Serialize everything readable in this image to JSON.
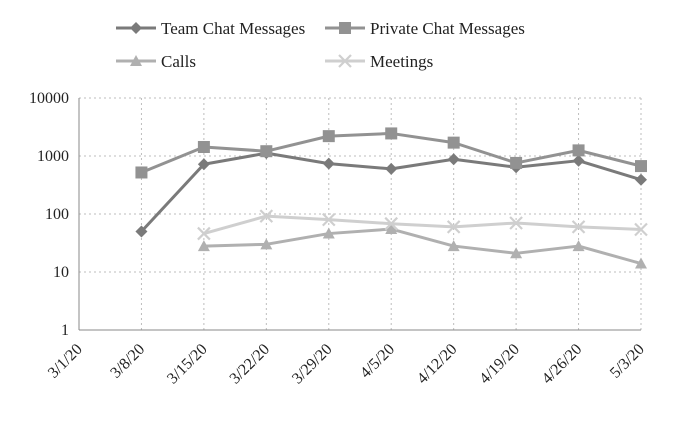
{
  "chart_data": {
    "type": "line",
    "title": "",
    "xlabel": "",
    "ylabel": "",
    "yscale": "log",
    "ylim": [
      1,
      10000
    ],
    "grid": true,
    "legend_position": "top",
    "categories": [
      "3/1/20",
      "3/8/20",
      "3/15/20",
      "3/22/20",
      "3/29/20",
      "4/5/20",
      "4/12/20",
      "4/19/20",
      "4/26/20",
      "5/3/20"
    ],
    "y_ticks": [
      1,
      10,
      100,
      1000,
      10000
    ],
    "y_tick_labels": [
      "1",
      "10",
      "100",
      "1000",
      "10000"
    ],
    "series": [
      {
        "name": "Team Chat Messages",
        "marker": "diamond",
        "color": "#7a7a7a",
        "values": [
          null,
          50,
          720,
          1120,
          740,
          600,
          880,
          640,
          830,
          390
        ]
      },
      {
        "name": "Private Chat Messages",
        "marker": "square",
        "color": "#929292",
        "values": [
          null,
          520,
          1430,
          1210,
          2200,
          2450,
          1700,
          760,
          1250,
          670
        ]
      },
      {
        "name": "Calls",
        "marker": "triangle",
        "color": "#b0b0b0",
        "values": [
          null,
          null,
          28,
          30,
          46,
          55,
          28,
          21,
          28,
          14
        ]
      },
      {
        "name": "Meetings",
        "marker": "x",
        "color": "#cfcfcf",
        "values": [
          null,
          null,
          46,
          92,
          80,
          68,
          60,
          70,
          60,
          54
        ]
      }
    ]
  }
}
